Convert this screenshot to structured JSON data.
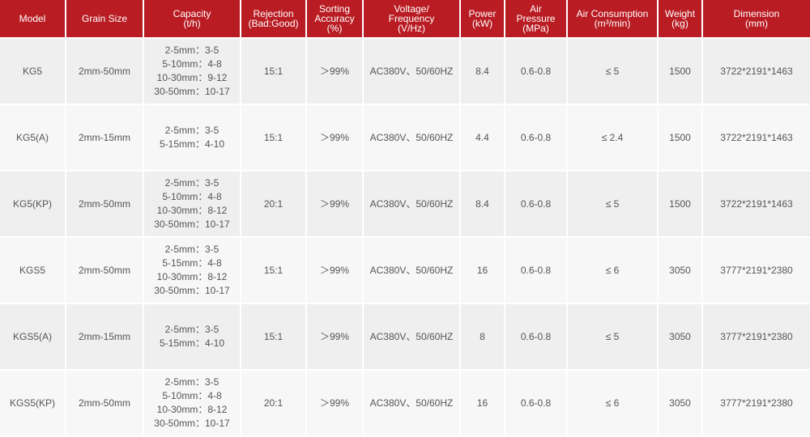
{
  "colors": {
    "header_bg": "#b91c23",
    "row_a": "#efefef",
    "row_b": "#f7f7f7",
    "text": "#555555"
  },
  "headers": [
    [
      "Model"
    ],
    [
      "Grain Size"
    ],
    [
      "Capacity",
      "(t/h)"
    ],
    [
      "Rejection",
      "(Bad:Good)"
    ],
    [
      "Sorting",
      "Accuracy",
      "(%)"
    ],
    [
      "Voltage/",
      "Frequency",
      "(V/Hz)"
    ],
    [
      "Power",
      "(kW)"
    ],
    [
      "Air",
      "Pressure",
      "(MPa)"
    ],
    [
      "Air Consumption",
      "(m³/min)"
    ],
    [
      "Weight",
      "(kg)"
    ],
    [
      "Dimension",
      "(mm)"
    ]
  ],
  "rows": [
    {
      "model": "KG5",
      "grain": "2mm-50mm",
      "capacity": [
        "2-5mm：3-5",
        "5-10mm：4-8",
        "10-30mm：9-12",
        "30-50mm：10-17"
      ],
      "rejection": "15:1",
      "accuracy": "＞99%",
      "voltage": "AC380V、50/60HZ",
      "power": "8.4",
      "pressure": "0.6-0.8",
      "air": "≤ 5",
      "weight": "1500",
      "dimension": "3722*2191*1463"
    },
    {
      "model": "KG5(A)",
      "grain": "2mm-15mm",
      "capacity": [
        "2-5mm：3-5",
        "5-15mm：4-10"
      ],
      "rejection": "15:1",
      "accuracy": "＞99%",
      "voltage": "AC380V、50/60HZ",
      "power": "4.4",
      "pressure": "0.6-0.8",
      "air": "≤ 2.4",
      "weight": "1500",
      "dimension": "3722*2191*1463"
    },
    {
      "model": "KG5(KP)",
      "grain": "2mm-50mm",
      "capacity": [
        "2-5mm：3-5",
        "5-10mm：4-8",
        "10-30mm：8-12",
        "30-50mm：10-17"
      ],
      "rejection": "20:1",
      "accuracy": "＞99%",
      "voltage": "AC380V、50/60HZ",
      "power": "8.4",
      "pressure": "0.6-0.8",
      "air": "≤ 5",
      "weight": "1500",
      "dimension": "3722*2191*1463"
    },
    {
      "model": "KGS5",
      "grain": "2mm-50mm",
      "capacity": [
        "2-5mm：3-5",
        "5-15mm：4-8",
        "10-30mm：8-12",
        "30-50mm：10-17"
      ],
      "rejection": "15:1",
      "accuracy": "＞99%",
      "voltage": "AC380V、50/60HZ",
      "power": "16",
      "pressure": "0.6-0.8",
      "air": "≤ 6",
      "weight": "3050",
      "dimension": "3777*2191*2380"
    },
    {
      "model": "KGS5(A)",
      "grain": "2mm-15mm",
      "capacity": [
        "2-5mm：3-5",
        "5-15mm：4-10"
      ],
      "rejection": "15:1",
      "accuracy": "＞99%",
      "voltage": "AC380V、50/60HZ",
      "power": "8",
      "pressure": "0.6-0.8",
      "air": "≤ 5",
      "weight": "3050",
      "dimension": "3777*2191*2380"
    },
    {
      "model": "KGS5(KP)",
      "grain": "2mm-50mm",
      "capacity": [
        "2-5mm：3-5",
        "5-10mm：4-8",
        "10-30mm：8-12",
        "30-50mm：10-17"
      ],
      "rejection": "20:1",
      "accuracy": "＞99%",
      "voltage": "AC380V、50/60HZ",
      "power": "16",
      "pressure": "0.6-0.8",
      "air": "≤ 6",
      "weight": "3050",
      "dimension": "3777*2191*2380"
    }
  ]
}
